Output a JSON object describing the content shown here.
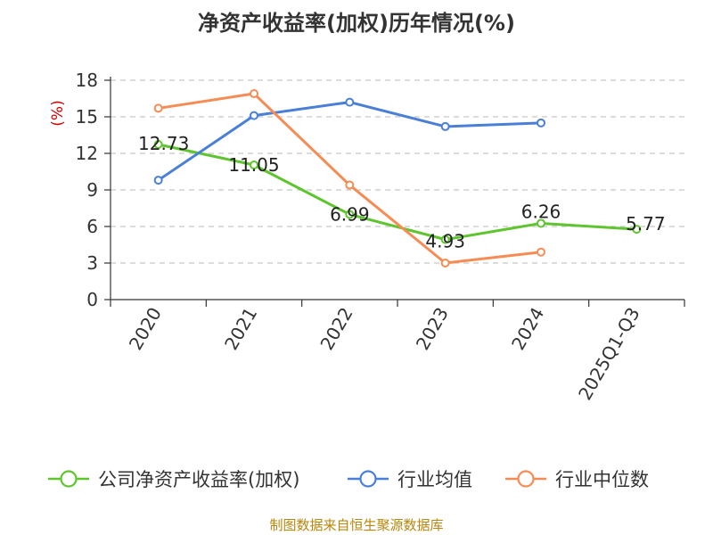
{
  "page": {
    "title": "净资产收益率(加权)历年情况(%)",
    "source": "制图数据来自恒生聚源数据库"
  },
  "chart_data": {
    "type": "line",
    "title": "净资产收益率(加权)历年情况(%)",
    "ylabel": "(%)",
    "xlabel": "",
    "ylim": [
      0,
      18
    ],
    "yticks": [
      0,
      3,
      6,
      9,
      12,
      15,
      18
    ],
    "categories": [
      "2020",
      "2021",
      "2022",
      "2023",
      "2024",
      "2025Q1-Q3"
    ],
    "legend_position": "bottom",
    "series": [
      {
        "name": "公司净资产收益率(加权)",
        "color": "#5ec52e",
        "values": [
          12.73,
          11.05,
          6.99,
          4.93,
          6.26,
          5.77
        ],
        "labels": [
          "12.73",
          "11.05",
          "6.99",
          "4.93",
          "6.26",
          "5.77"
        ]
      },
      {
        "name": "行业均值",
        "color": "#4a7fd8",
        "values": [
          9.8,
          15.1,
          16.2,
          14.2,
          14.5,
          null
        ]
      },
      {
        "name": "行业中位数",
        "color": "#f68c54",
        "values": [
          15.7,
          16.9,
          9.4,
          3.0,
          3.9,
          null
        ]
      }
    ]
  }
}
